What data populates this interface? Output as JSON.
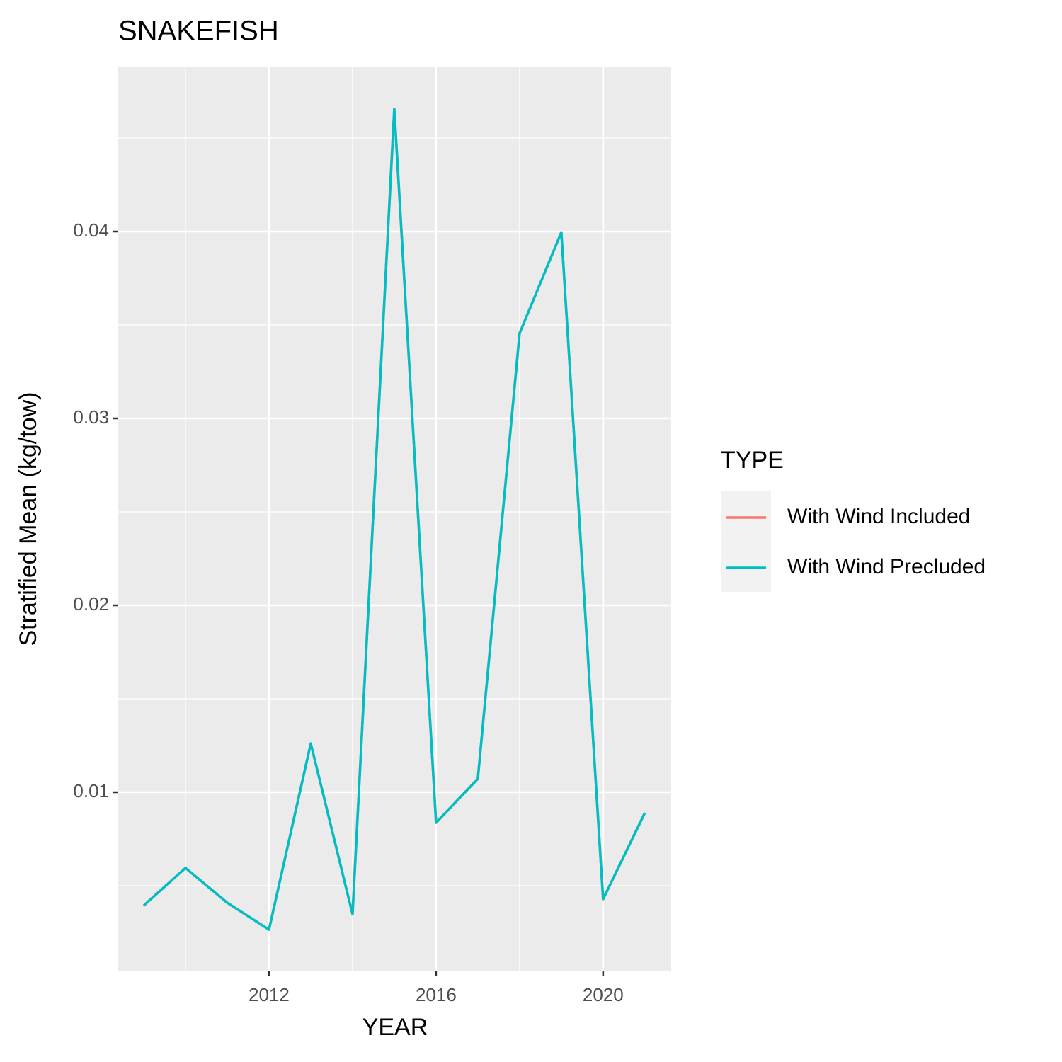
{
  "chart_data": {
    "type": "line",
    "title": "SNAKEFISH",
    "x_label": "YEAR",
    "y_label": "Stratified Mean (kg/tow)",
    "x": [
      2009,
      2010,
      2011,
      2012,
      2013,
      2014,
      2015,
      2016,
      2017,
      2018,
      2019,
      2020,
      2021
    ],
    "series": [
      {
        "name": "With Wind Included",
        "color": "#f8766d",
        "values": [
          0.00394,
          0.00595,
          0.00409,
          0.00265,
          0.01261,
          0.00348,
          0.04655,
          0.00837,
          0.01072,
          0.03455,
          0.03996,
          0.00428,
          0.0089
        ]
      },
      {
        "name": "With Wind Precluded",
        "color": "#00bfc4",
        "values": [
          0.00394,
          0.00595,
          0.00409,
          0.00265,
          0.01261,
          0.00348,
          0.04655,
          0.00837,
          0.01072,
          0.03455,
          0.03996,
          0.00428,
          0.0089
        ]
      }
    ],
    "legend_title": "TYPE",
    "legend_position": "right",
    "xlim": [
      2008.39,
      2021.63
    ],
    "xticks": [
      2012,
      2016,
      2020
    ],
    "x_minor_grid": [
      2010,
      2014,
      2018
    ],
    "ylim": [
      0.000455,
      0.048788
    ],
    "yticks": [
      0.01,
      0.02,
      0.03,
      0.04
    ],
    "y_minor_grid": [
      0.005,
      0.015,
      0.025,
      0.035,
      0.045
    ],
    "grid": true
  }
}
